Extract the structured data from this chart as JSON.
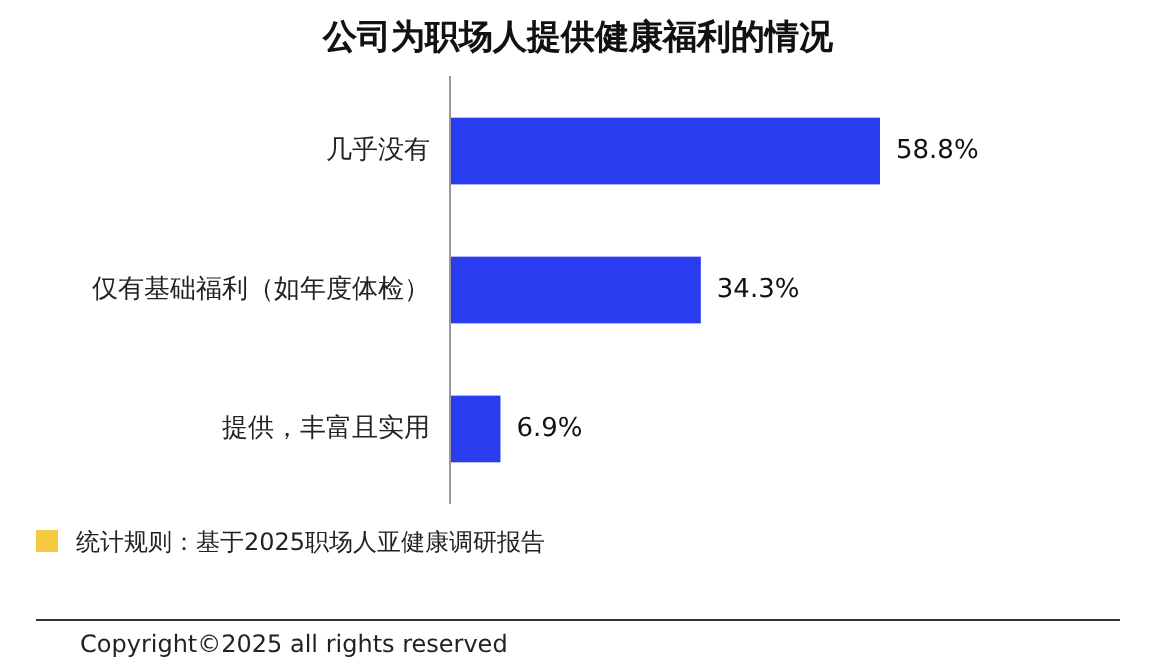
{
  "chart_data": {
    "type": "bar",
    "orientation": "horizontal",
    "title": "公司为职场人提供健康福利的情况",
    "categories": [
      "几乎没有",
      "仅有基础福利（如年度体检）",
      "提供，丰富且实用"
    ],
    "values": [
      58.8,
      34.3,
      6.9
    ],
    "value_labels": [
      "58.8%",
      "34.3%",
      "6.9%"
    ],
    "color": "#2a3cf0",
    "annotations": [
      "统计规则：基于2025职场人亚健康调研报告",
      "Copyright©2025 all rights reserved"
    ]
  }
}
